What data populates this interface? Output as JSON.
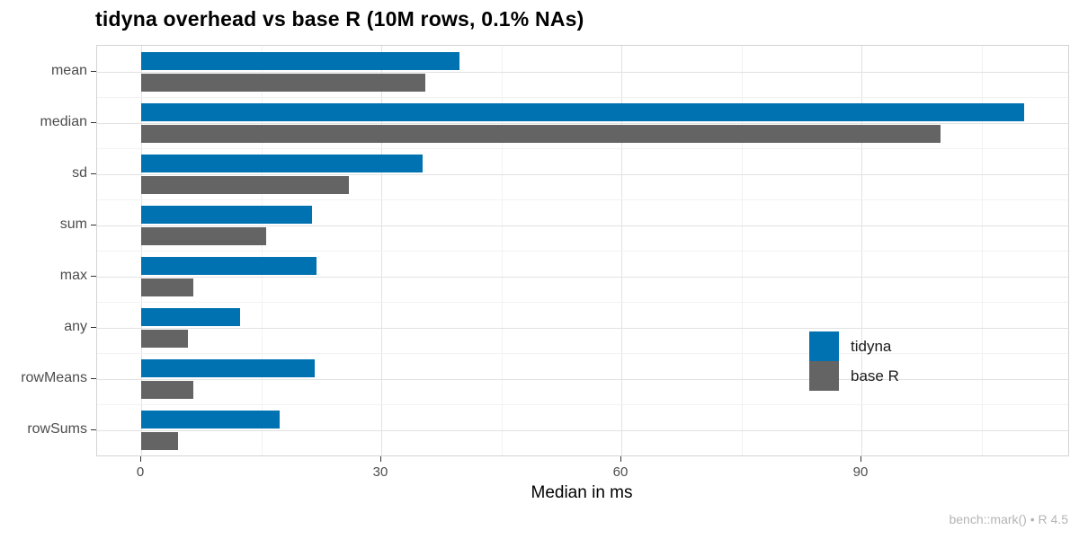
{
  "chart_data": {
    "type": "bar",
    "orientation": "horizontal",
    "title": "tidyna overhead vs base R (10M rows, 0.1% NAs)",
    "xlabel": "Median in ms",
    "caption": "bench::mark() • R 4.5",
    "categories": [
      "mean",
      "median",
      "sd",
      "sum",
      "max",
      "any",
      "rowMeans",
      "rowSums"
    ],
    "series": [
      {
        "name": "tidyna",
        "color": "#0072B2",
        "values": [
          39.8,
          110.3,
          35.2,
          21.3,
          21.9,
          12.4,
          21.7,
          17.3
        ]
      },
      {
        "name": "base R",
        "color": "#646464",
        "values": [
          35.5,
          99.9,
          26.0,
          15.6,
          6.5,
          5.8,
          6.5,
          4.6
        ]
      }
    ],
    "x_ticks": [
      0,
      30,
      60,
      90
    ],
    "x_minor_ticks": [
      15,
      45,
      75,
      105
    ],
    "x_domain": [
      -5.5,
      115.8
    ],
    "grid": true,
    "legend_position": "inside-right",
    "colors": {
      "grid_major": "#e2e2e2",
      "grid_minor": "#f2f2f2",
      "panel_border": "#d4d4d4",
      "axis_text": "#4d4d4d",
      "tick_mark": "#333333",
      "caption_text": "#b4b4b4"
    }
  }
}
